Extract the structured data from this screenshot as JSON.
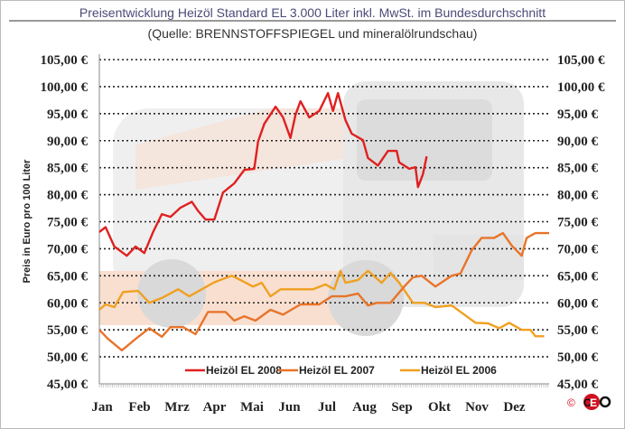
{
  "chart_data": {
    "type": "line",
    "title": "Preisentwicklung Heizöl Standard EL 3.000 Liter inkl. MwSt. im Bundesdurchschnitt",
    "subtitle": "(Quelle: BRENNSTOFFSPIEGEL und mineralölrundschau)",
    "ylabel": "Preis in Euro pro 100 Liter",
    "xlabel": "",
    "ylim": [
      45,
      105
    ],
    "yticks": [
      "45,00 €",
      "50,00 €",
      "55,00 €",
      "60,00 €",
      "65,00 €",
      "70,00 €",
      "75,00 €",
      "80,00 €",
      "85,00 €",
      "90,00 €",
      "95,00 €",
      "100,00 €",
      "105,00 €"
    ],
    "ytick_values": [
      45,
      50,
      55,
      60,
      65,
      70,
      75,
      80,
      85,
      90,
      95,
      100,
      105
    ],
    "categories": [
      "Jan",
      "Feb",
      "Mrz",
      "Apr",
      "Mai",
      "Jun",
      "Jul",
      "Aug",
      "Sep",
      "Okt",
      "Nov",
      "Dez"
    ],
    "grid": true,
    "legend_position": "bottom",
    "series": [
      {
        "name": "Heizöl EL 2008",
        "color": "#e02020",
        "x": [
          "01-01",
          "01-06",
          "01-13",
          "01-23",
          "01-30",
          "02-07",
          "02-14",
          "02-21",
          "02-28",
          "03-06",
          "03-15",
          "03-20",
          "03-26",
          "04-03",
          "04-10",
          "04-19",
          "04-27",
          "05-05",
          "05-08",
          "05-13",
          "05-22",
          "05-28",
          "06-04",
          "06-08",
          "06-12",
          "06-19",
          "06-27",
          "07-04",
          "07-08",
          "07-12",
          "07-18",
          "07-23",
          "08-02",
          "08-06",
          "08-14",
          "08-22",
          "08-29",
          "09-01",
          "09-09",
          "09-14",
          "09-16",
          "09-20",
          "09-23"
        ],
        "y": [
          73.1,
          74.0,
          70.4,
          68.7,
          70.4,
          69.2,
          73.1,
          76.4,
          75.9,
          77.6,
          78.7,
          77.0,
          75.4,
          75.4,
          80.4,
          82.1,
          84.6,
          84.8,
          89.8,
          93.1,
          96.3,
          94.3,
          90.5,
          94.8,
          97.3,
          94.3,
          95.5,
          98.8,
          95.5,
          98.8,
          93.8,
          91.3,
          90.1,
          86.8,
          85.4,
          88.1,
          88.1,
          86.0,
          84.8,
          85.1,
          81.4,
          83.8,
          87.1
        ]
      },
      {
        "name": "Heizöl EL 2007",
        "color": "#e8742a",
        "x": [
          "01-01",
          "01-08",
          "01-19",
          "01-30",
          "02-11",
          "02-21",
          "02-28",
          "03-08",
          "03-18",
          "03-28",
          "04-12",
          "04-19",
          "04-27",
          "05-06",
          "05-18",
          "05-28",
          "06-12",
          "06-27",
          "07-07",
          "07-18",
          "07-28",
          "08-06",
          "08-13",
          "08-24",
          "09-05",
          "09-12",
          "09-19",
          "09-30",
          "10-13",
          "10-20",
          "10-29",
          "11-07",
          "11-17",
          "11-24",
          "12-01",
          "12-09",
          "12-13",
          "12-20",
          "12-31"
        ],
        "y": [
          55.0,
          53.3,
          51.2,
          53.3,
          55.3,
          53.7,
          55.5,
          55.5,
          54.2,
          58.3,
          58.3,
          56.7,
          57.5,
          56.7,
          58.7,
          57.8,
          59.7,
          59.7,
          61.2,
          61.2,
          61.7,
          59.5,
          60.0,
          60.0,
          63.0,
          64.7,
          65.0,
          63.0,
          65.0,
          65.4,
          69.7,
          72.0,
          72.0,
          72.9,
          70.6,
          68.7,
          72.0,
          72.9,
          72.9
        ]
      },
      {
        "name": "Heizöl EL 2006",
        "color": "#f0a020",
        "x": [
          "01-01",
          "01-06",
          "01-13",
          "01-20",
          "02-02",
          "02-11",
          "02-21",
          "03-04",
          "03-13",
          "03-23",
          "04-03",
          "04-17",
          "04-24",
          "05-04",
          "05-11",
          "05-18",
          "05-26",
          "06-08",
          "06-22",
          "07-02",
          "07-09",
          "07-14",
          "07-18",
          "07-28",
          "08-06",
          "08-17",
          "08-24",
          "09-01",
          "09-12",
          "09-21",
          "09-30",
          "10-13",
          "10-22",
          "11-02",
          "11-12",
          "11-21",
          "11-29",
          "12-09",
          "12-16",
          "12-20",
          "12-27"
        ],
        "y": [
          58.7,
          59.7,
          59.2,
          62.0,
          62.2,
          60.0,
          60.9,
          62.5,
          61.2,
          62.5,
          63.8,
          65.0,
          64.2,
          63.0,
          63.7,
          61.2,
          62.5,
          62.5,
          62.5,
          63.4,
          62.5,
          65.9,
          63.7,
          64.2,
          65.9,
          63.7,
          65.5,
          63.7,
          60.0,
          60.0,
          59.2,
          59.5,
          58.0,
          56.3,
          56.2,
          55.3,
          56.3,
          55.0,
          55.0,
          53.8,
          53.8
        ]
      }
    ]
  }
}
